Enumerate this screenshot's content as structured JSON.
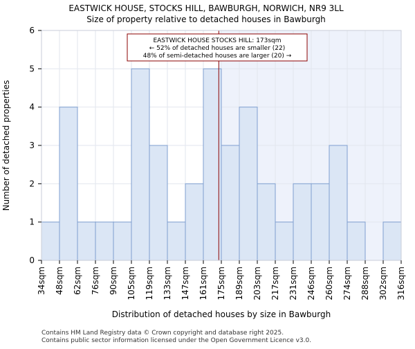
{
  "chart_data": {
    "type": "bar",
    "title_lines": [
      "EASTWICK HOUSE, STOCKS HILL, BAWBURGH, NORWICH, NR9 3LL",
      "Size of property relative to detached houses in Bawburgh"
    ],
    "xlabel": "Distribution of detached houses by size in Bawburgh",
    "ylabel": "Number of detached properties",
    "bin_edges": [
      34,
      48,
      62,
      76,
      90,
      105,
      119,
      133,
      147,
      161,
      175,
      189,
      203,
      217,
      231,
      246,
      260,
      274,
      288,
      302,
      316
    ],
    "tick_labels": [
      "34sqm",
      "48sqm",
      "62sqm",
      "76sqm",
      "90sqm",
      "105sqm",
      "119sqm",
      "133sqm",
      "147sqm",
      "161sqm",
      "175sqm",
      "189sqm",
      "203sqm",
      "217sqm",
      "231sqm",
      "246sqm",
      "260sqm",
      "274sqm",
      "288sqm",
      "302sqm",
      "316sqm"
    ],
    "values": [
      1,
      4,
      1,
      1,
      1,
      5,
      3,
      1,
      2,
      5,
      3,
      4,
      2,
      1,
      2,
      2,
      3,
      1,
      0,
      1
    ],
    "ylim": [
      0,
      6
    ],
    "yticks": [
      0,
      1,
      2,
      3,
      4,
      5,
      6
    ],
    "marker_value": 173,
    "annotation_lines": [
      "EASTWICK HOUSE STOCKS HILL: 173sqm",
      "← 52% of detached houses are smaller (22)",
      "48% of semi-detached houses are larger (20) →"
    ],
    "colors": {
      "bar_fill": "#dbe6f5",
      "bar_stroke": "#7f9fd0",
      "plot_bg_right": "#eef2fb",
      "grid": "#e2e6ee",
      "marker": "#8b0000",
      "annotation_border": "#8b0000"
    },
    "grid": true
  },
  "footer": {
    "line1": "Contains HM Land Registry data © Crown copyright and database right 2025.",
    "line2": "Contains public sector information licensed under the Open Government Licence v3.0."
  }
}
